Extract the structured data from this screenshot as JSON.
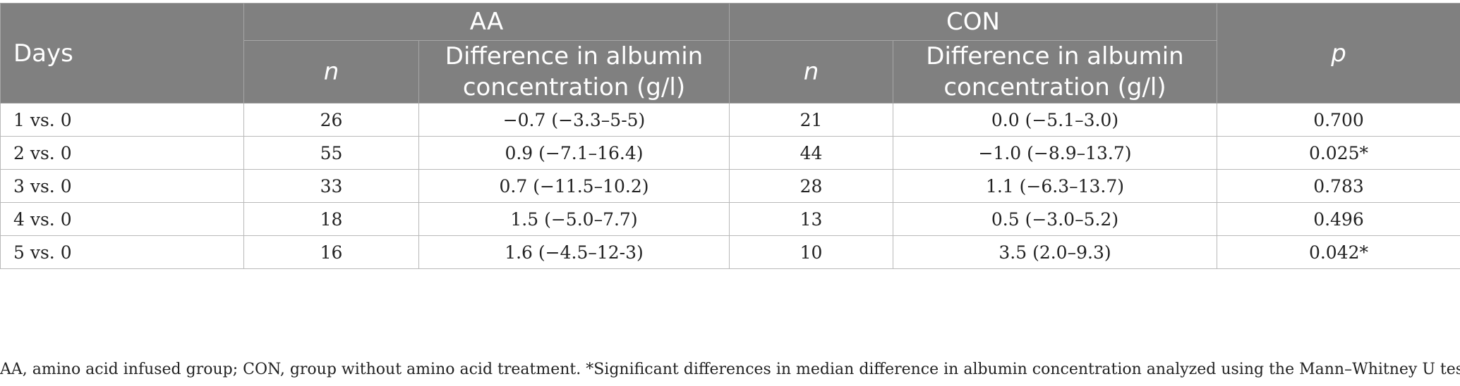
{
  "table": {
    "header": {
      "days": "Days",
      "group_aa": "AA",
      "group_con": "CON",
      "p": "p",
      "n": "n",
      "difference": "Difference in albumin concentration (g/l)"
    },
    "rows": [
      {
        "days": "1 vs. 0",
        "aa_n": "26",
        "aa_diff": "−0.7 (−3.3–5-5)",
        "con_n": "21",
        "con_diff": "0.0 (−5.1–3.0)",
        "p": "0.700"
      },
      {
        "days": "2 vs. 0",
        "aa_n": "55",
        "aa_diff": "0.9 (−7.1–16.4)",
        "con_n": "44",
        "con_diff": "−1.0 (−8.9–13.7)",
        "p": "0.025*"
      },
      {
        "days": "3 vs. 0",
        "aa_n": "33",
        "aa_diff": "0.7 (−11.5–10.2)",
        "con_n": "28",
        "con_diff": "1.1 (−6.3–13.7)",
        "p": "0.783"
      },
      {
        "days": "4 vs. 0",
        "aa_n": "18",
        "aa_diff": "1.5 (−5.0–7.7)",
        "con_n": "13",
        "con_diff": "0.5 (−3.0–5.2)",
        "p": "0.496"
      },
      {
        "days": "5 vs. 0",
        "aa_n": "16",
        "aa_diff": "1.6 (−4.5–12-3)",
        "con_n": "10",
        "con_diff": "3.5 (2.0–9.3)",
        "p": "0.042*"
      }
    ]
  },
  "footnote": "AA, amino acid infused group; CON, group without amino acid treatment. *Significant differences in median difference in albumin concentration analyzed using the Mann–Whitney U test.",
  "colors": {
    "header_bg": "#808080",
    "header_text": "#ffffff",
    "border": "#b9b9b9"
  }
}
